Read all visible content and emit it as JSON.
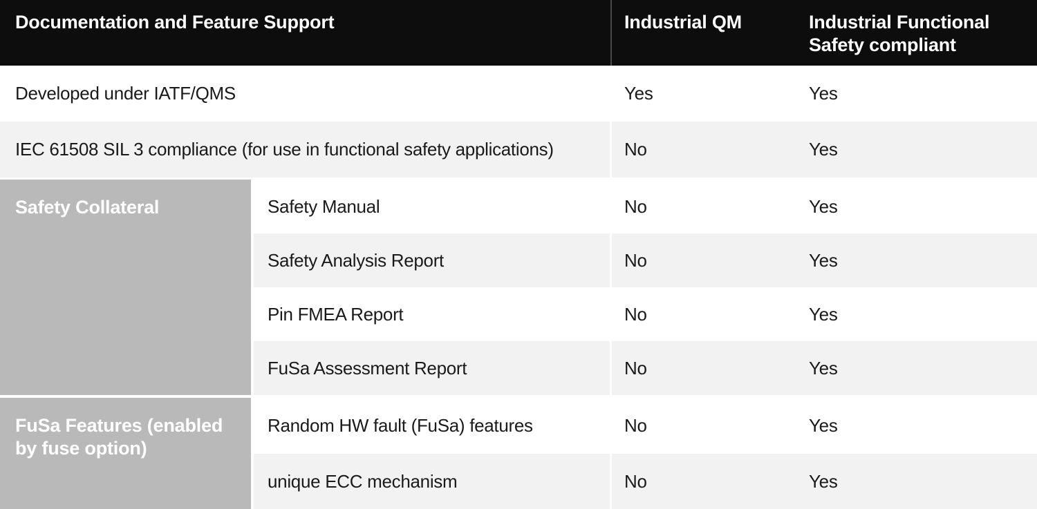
{
  "header": {
    "feature": "Documentation and Feature Support",
    "qm": "Industrial QM",
    "fusa": "Industrial Functional Safety compliant"
  },
  "rows": [
    {
      "label": "Developed under IATF/QMS",
      "qm": "Yes",
      "fusa": "Yes"
    },
    {
      "label": "IEC 61508 SIL 3 compliance (for use in functional safety applications)",
      "qm": "No",
      "fusa": "Yes"
    }
  ],
  "sections": [
    {
      "group": "Safety Collateral",
      "rows": [
        {
          "label": "Safety Manual",
          "qm": "No",
          "fusa": "Yes"
        },
        {
          "label": "Safety Analysis Report",
          "qm": "No",
          "fusa": "Yes"
        },
        {
          "label": "Pin FMEA Report",
          "qm": "No",
          "fusa": "Yes"
        },
        {
          "label": "FuSa Assessment Report",
          "qm": "No",
          "fusa": "Yes"
        }
      ]
    },
    {
      "group": "FuSa Features (enabled by fuse option)",
      "rows": [
        {
          "label": "Random HW fault (FuSa) features",
          "qm": "No",
          "fusa": "Yes"
        },
        {
          "label": "unique ECC mechanism",
          "qm": "No",
          "fusa": "Yes"
        }
      ]
    }
  ],
  "colors": {
    "header_bg": "#0d0d0d",
    "header_text": "#ffffff",
    "header_divider": "#4a4a4a",
    "group_bg": "#b9b9b9",
    "group_text": "#ffffff",
    "row_bg": "#ffffff",
    "row_alt_bg": "#f2f2f2",
    "body_text": "#1a1a1a"
  }
}
